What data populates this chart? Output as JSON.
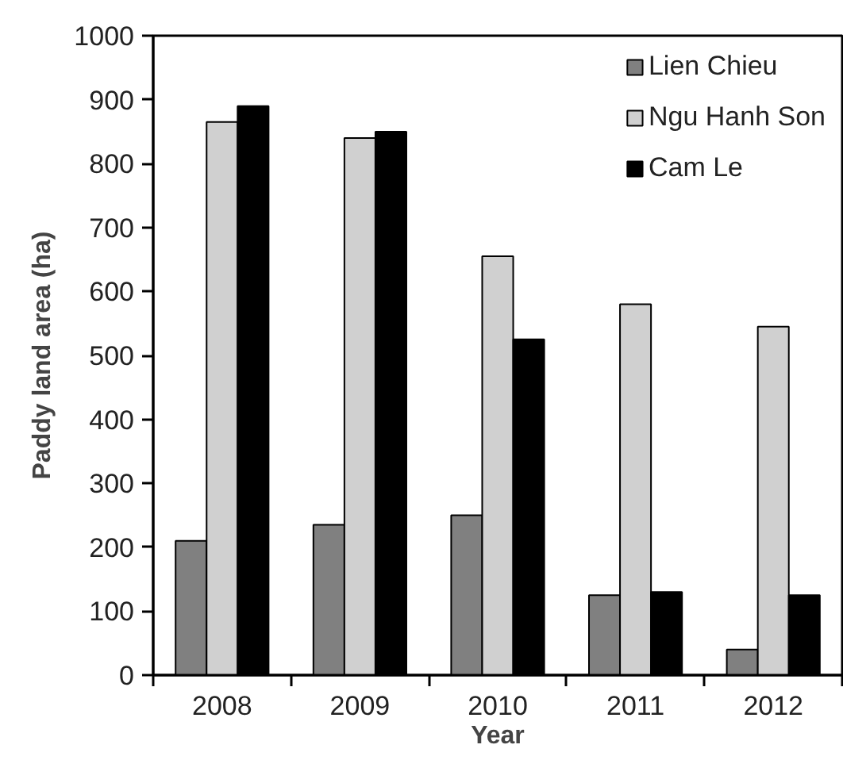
{
  "chart_data": {
    "type": "bar",
    "xlabel": "Year",
    "ylabel": "Paddy land area (ha)",
    "categories": [
      "2008",
      "2009",
      "2010",
      "2011",
      "2012"
    ],
    "series": [
      {
        "name": "Lien Chieu",
        "color": "#808080",
        "values": [
          210,
          235,
          250,
          125,
          40
        ]
      },
      {
        "name": "Ngu Hanh Son",
        "color": "#d0d0d0",
        "values": [
          865,
          840,
          655,
          580,
          545
        ]
      },
      {
        "name": "Cam Le",
        "color": "#000000",
        "values": [
          890,
          850,
          525,
          130,
          125
        ]
      }
    ],
    "ylim": [
      0,
      1000
    ],
    "yticks": [
      0,
      100,
      200,
      300,
      400,
      500,
      600,
      700,
      800,
      900,
      1000
    ],
    "legend": "top right"
  }
}
